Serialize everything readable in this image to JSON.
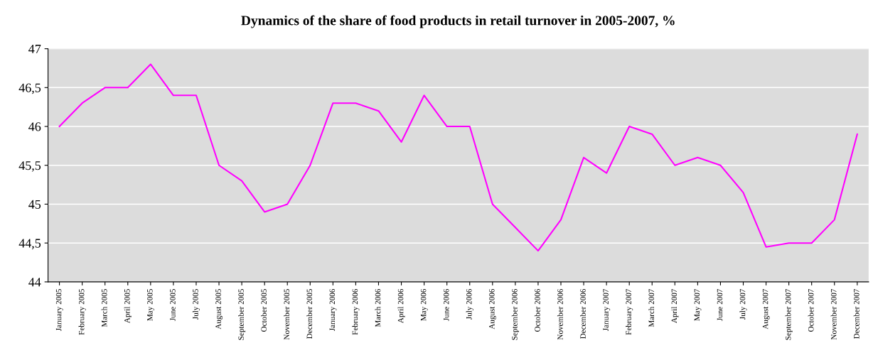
{
  "chart_data": {
    "type": "line",
    "title": "Dynamics of the share of food products in retail turnover in 2005-2007, %",
    "categories": [
      "January 2005",
      "February 2005",
      "March 2005",
      "April 2005",
      "May 2005",
      "June 2005",
      "July 2005",
      "August 2005",
      "September 2005",
      "October 2005",
      "November 2005",
      "December 2005",
      "January 2006",
      "February 2006",
      "March 2006",
      "April 2006",
      "May 2006",
      "June 2006",
      "July 2006",
      "August 2006",
      "September 2006",
      "October 2006",
      "November 2006",
      "December 2006",
      "January 2007",
      "February 2007",
      "March 2007",
      "April 2007",
      "May 2007",
      "June 2007",
      "July 2007",
      "August 2007",
      "September 2007",
      "October 2007",
      "November 2007",
      "December 2007"
    ],
    "series": [
      {
        "color": "#ff00ff",
        "values": [
          46.0,
          46.3,
          46.5,
          46.5,
          46.8,
          46.4,
          46.4,
          45.5,
          45.3,
          44.9,
          45.0,
          45.5,
          46.3,
          46.3,
          46.2,
          45.8,
          46.4,
          46.0,
          46.0,
          45.0,
          44.7,
          44.4,
          44.8,
          45.6,
          45.4,
          46.0,
          45.9,
          45.5,
          45.6,
          45.5,
          45.15,
          44.45,
          44.5,
          44.5,
          44.8,
          45.9
        ]
      }
    ],
    "ylim": [
      44,
      47
    ],
    "yticks": [
      44,
      {
        "value": 44.5,
        "label": "44,5"
      },
      45,
      {
        "value": 45.5,
        "label": "45,5"
      },
      46,
      {
        "value": 46.5,
        "label": "46,5"
      },
      47
    ],
    "grid": "y",
    "legend": false,
    "marker": "none",
    "line_style": "solid"
  }
}
